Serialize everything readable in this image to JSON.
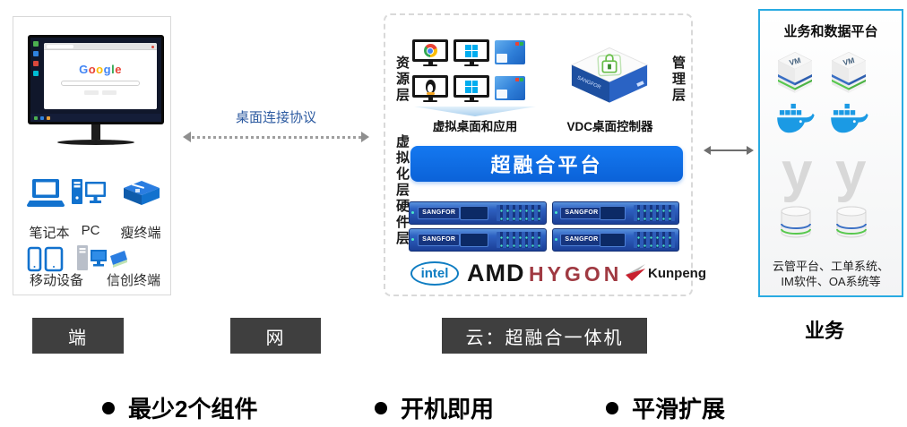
{
  "colors": {
    "accent_blue": "#0D6EE8",
    "device_blue": "#1272CE",
    "panel_border_cyan": "#29ABE2",
    "dark_label_bg": "#3F3F3F",
    "docker_blue": "#1B9AE4",
    "protocol_text_blue": "#2C5AA0",
    "intel_blue": "#0F7DC2",
    "hygon_red": "#A03A42",
    "windows_blue": "#00ADEF",
    "google_letters": [
      "#4285F4",
      "#EA4335",
      "#FBBC05",
      "#4285F4",
      "#34A853",
      "#EA4335"
    ]
  },
  "left_panel": {
    "screen_logo": "Google",
    "devices": [
      "笔记本",
      "PC",
      "瘦终端",
      "移动设备",
      "信创终端"
    ]
  },
  "network": {
    "protocol": "桌面连接协议"
  },
  "center": {
    "layer_resource": "资源层",
    "layer_virtualization": "虚拟化层",
    "layer_hardware": "硬件层",
    "layer_management": "管理层",
    "virtual_desktop_label": "虚拟桌面和应用",
    "vdc_label": "VDC桌面控制器",
    "platform_label": "超融合平台",
    "server_brand": "SANGFOR",
    "cpus": [
      "intel",
      "AMD",
      "HYGON",
      "Kunpeng"
    ]
  },
  "right_panel": {
    "title": "业务和数据平台",
    "vm_label": "VM",
    "y_logo": "y",
    "caption_line1": "云管平台、工单系统、",
    "caption_line2": "IM软件、OA系统等"
  },
  "bottom_labels": {
    "terminal": "端",
    "network": "网",
    "cloud": "云：超融合一体机",
    "business": "业务"
  },
  "bullets": [
    "最少2个组件",
    "开机即用",
    "平滑扩展"
  ]
}
